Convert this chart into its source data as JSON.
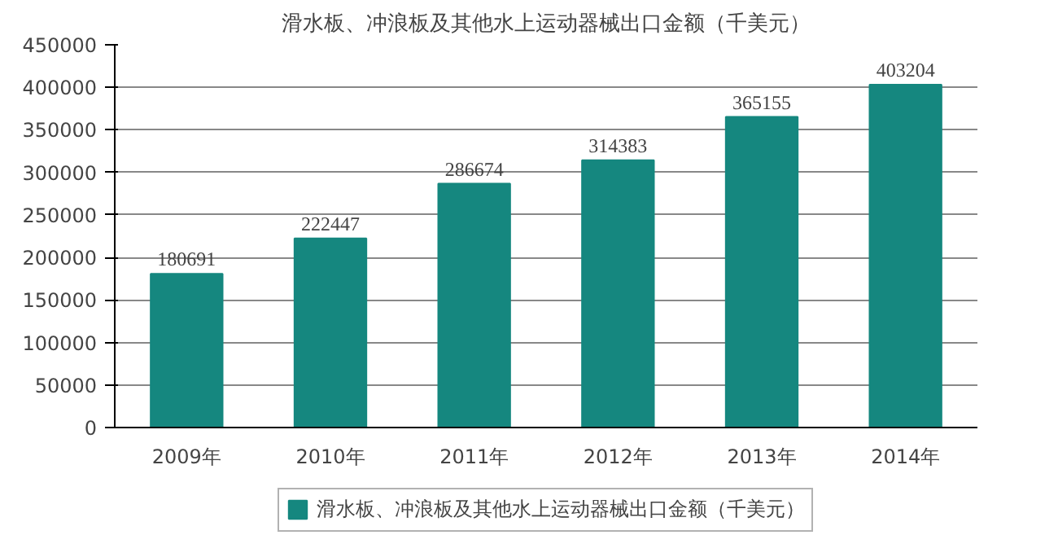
{
  "chart_data": {
    "type": "bar",
    "title": "滑水板、冲浪板及其他水上运动器械出口金额（千美元）",
    "categories": [
      "2009年",
      "2010年",
      "2011年",
      "2012年",
      "2013年",
      "2014年"
    ],
    "series": [
      {
        "name": "滑水板、冲浪板及其他水上运动器械出口金额（千美元）",
        "color": "#15877f",
        "values": [
          180691,
          222447,
          286674,
          314383,
          365155,
          403204
        ]
      }
    ],
    "ylim": [
      0,
      450000
    ],
    "yticks": [
      0,
      50000,
      100000,
      150000,
      200000,
      250000,
      300000,
      350000,
      400000,
      450000
    ],
    "grid": "y",
    "legend": "bottom",
    "data_labels": true
  }
}
